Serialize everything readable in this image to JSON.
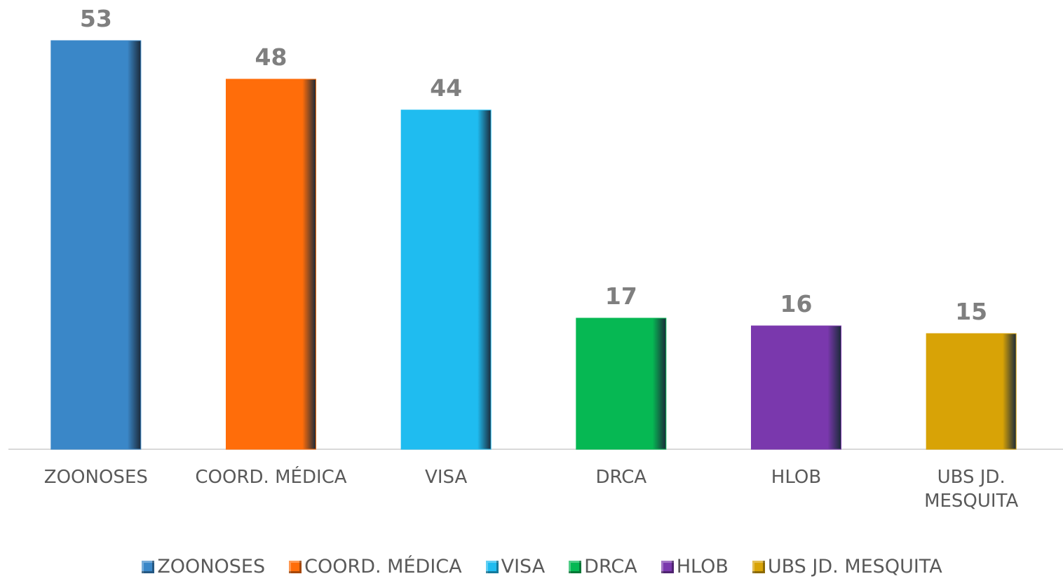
{
  "chart_data": {
    "type": "bar",
    "categories": [
      "ZOONOSES",
      "COORD. MÉDICA",
      "VISA",
      "DRCA",
      "HLOB",
      "UBS JD. MESQUITA"
    ],
    "values": [
      53,
      48,
      44,
      17,
      16,
      15
    ],
    "colors": [
      "#3a87c8",
      "#ff6d0a",
      "#1fbcf0",
      "#06b853",
      "#7a38ad",
      "#d8a306"
    ],
    "ylim": [
      0,
      58
    ],
    "legend": "bottom"
  }
}
